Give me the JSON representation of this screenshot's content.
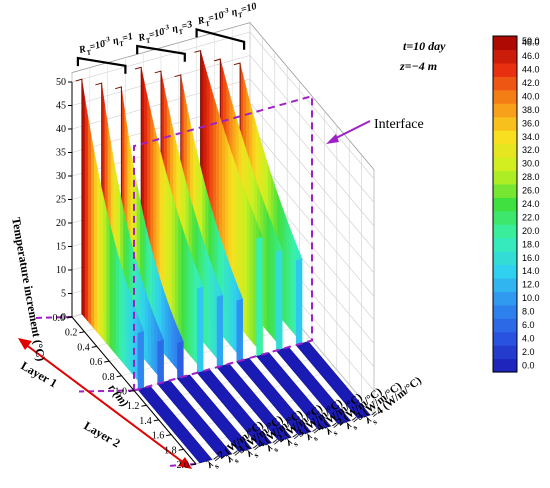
{
  "chart_data": {
    "type": "3d-waterfall",
    "annotation_time": "t=10 day",
    "annotation_depth": "z=−4 m",
    "zlabel": "Temperature increment (°C)",
    "xlabel": "r (m)",
    "layer_labels": [
      "Layer 1",
      "Layer 2"
    ],
    "interface_label": "Interface",
    "interface_r": 1.0,
    "x_ticks": [
      "0.0",
      "0.2",
      "0.4",
      "0.6",
      "0.8",
      "1.0",
      "1.2",
      "1.4",
      "1.6",
      "1.8",
      "2.0"
    ],
    "xlim": [
      0,
      2.0
    ],
    "z_ticks": [
      "0",
      "5",
      "10",
      "15",
      "20",
      "25",
      "30",
      "35",
      "40",
      "45",
      "50"
    ],
    "zlim": [
      0,
      50
    ],
    "groups": [
      {
        "r": "R",
        "rsub": "T",
        "rval": "=10",
        "rexp": "-3",
        "eta": "η",
        "etasub": "T",
        "etaval": "=1"
      },
      {
        "r": "R",
        "rsub": "T",
        "rval": "=10",
        "rexp": "-3",
        "eta": "η",
        "etasub": "T",
        "etaval": "=3"
      },
      {
        "r": "R",
        "rsub": "T",
        "rval": "=10",
        "rexp": "-3",
        "eta": "η",
        "etasub": "T",
        "etaval": "=10"
      }
    ],
    "series": [
      {
        "name": "λs=2 (W/m/°C)",
        "lam": "λ",
        "sub": "s",
        "val": "=2 (W/m/°C)",
        "group": 0,
        "peak": 50.0,
        "at_interface": 12.0
      },
      {
        "name": "λs=3 (W/m/°C)",
        "lam": "λ",
        "sub": "s",
        "val": "=3 (W/m/°C)",
        "group": 0,
        "peak": 48.0,
        "at_interface": 9.0
      },
      {
        "name": "λs=4 (W/m/°C)",
        "lam": "λ",
        "sub": "s",
        "val": "=4 (W/m/°C)",
        "group": 0,
        "peak": 46.0,
        "at_interface": 7.5
      },
      {
        "name": "λs=2 (W/m/°C)",
        "lam": "λ",
        "sub": "s",
        "val": "=2 (W/m/°C)",
        "group": 1,
        "peak": 49.0,
        "at_interface": 18.0
      },
      {
        "name": "λs=3 (W/m/°C)",
        "lam": "λ",
        "sub": "s",
        "val": "=3 (W/m/°C)",
        "group": 1,
        "peak": 47.0,
        "at_interface": 15.0
      },
      {
        "name": "λs=4 (W/m/°C)",
        "lam": "λ",
        "sub": "s",
        "val": "=4 (W/m/°C)",
        "group": 1,
        "peak": 45.0,
        "at_interface": 13.0
      },
      {
        "name": "λs=2 (W/m/°C)",
        "lam": "λ",
        "sub": "s",
        "val": "=2 (W/m/°C)",
        "group": 2,
        "peak": 49.0,
        "at_interface": 25.0
      },
      {
        "name": "λs=3 (W/m/°C)",
        "lam": "λ",
        "sub": "s",
        "val": "=3 (W/m/°C)",
        "group": 2,
        "peak": 46.0,
        "at_interface": 21.0
      },
      {
        "name": "λs=4 (W/m/°C)",
        "lam": "λ",
        "sub": "s",
        "val": "=4 (W/m/°C)",
        "group": 2,
        "peak": 44.0,
        "at_interface": 18.0
      }
    ],
    "colorbar_ticks": [
      "0.0",
      "2.0",
      "4.0",
      "6.0",
      "8.0",
      "10.0",
      "12.0",
      "14.0",
      "16.0",
      "18.0",
      "20.0",
      "22.0",
      "24.0",
      "26.0",
      "28.0",
      "30.0",
      "32.0",
      "34.0",
      "36.0",
      "38.0",
      "40.0",
      "42.0",
      "44.0",
      "46.0",
      "48.0",
      "50.0"
    ],
    "colorbar_range": [
      0,
      50
    ],
    "colors": {
      "interface_line": "#a020c8",
      "layer_arrow": "#e00000",
      "colormap": [
        "#1a1ab4",
        "#2a52e0",
        "#2f8cf0",
        "#30d0f0",
        "#38f0b0",
        "#40e040",
        "#c8f020",
        "#f8e020",
        "#f89018",
        "#e83010",
        "#a00000"
      ]
    }
  }
}
